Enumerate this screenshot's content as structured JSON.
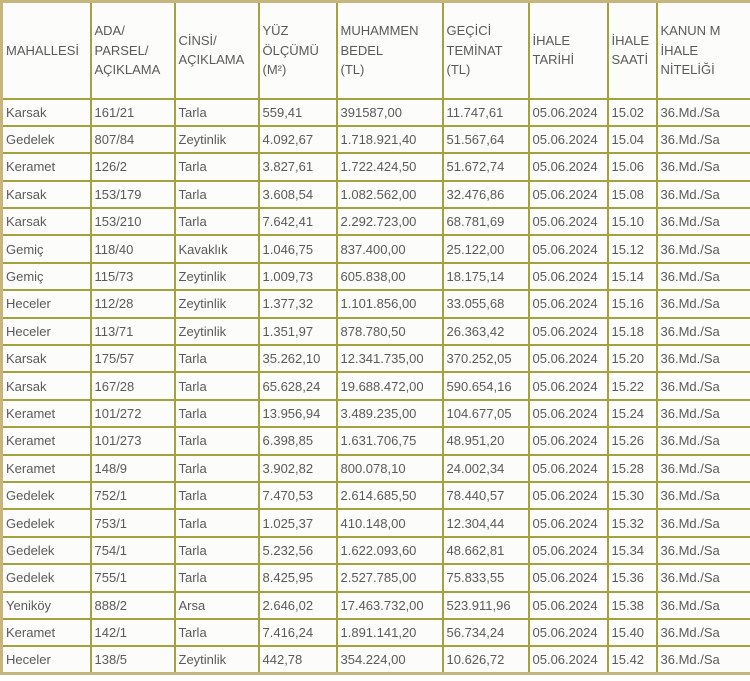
{
  "colors": {
    "grid_border": "#a2a23f",
    "outer_border": "#c6b57c",
    "cell_bg": "#fcfcfa",
    "text": "#5a5a5a",
    "page_bg": "#ffffff"
  },
  "table": {
    "columns": [
      {
        "key": "mahallesi",
        "label": "MAHALLESİ"
      },
      {
        "key": "ada",
        "label": "ADA/\nPARSEL/\nAÇIKLAMA"
      },
      {
        "key": "cinsi",
        "label": "CİNSİ/\nAÇIKLAMA"
      },
      {
        "key": "yuz",
        "label": "YÜZ\nÖLÇÜMÜ\n(M²)"
      },
      {
        "key": "bedel",
        "label": "MUHAMMEN\nBEDEL\n(TL)"
      },
      {
        "key": "teminat",
        "label": "GEÇİCİ\nTEMİNAT\n(TL)"
      },
      {
        "key": "tarih",
        "label": "İHALE\nTARİHİ"
      },
      {
        "key": "saat",
        "label": "İHALE\nSAATİ"
      },
      {
        "key": "kanun",
        "label": "KANUN M\nİHALE\nNİTELİĞİ"
      }
    ],
    "rows": [
      {
        "mahallesi": "Karsak",
        "ada": "161/21",
        "cinsi": "Tarla",
        "yuz": "559,41",
        "bedel": "391587,00",
        "teminat": "11.747,61",
        "tarih": "05.06.2024",
        "saat": "15.02",
        "kanun": "36.Md./Sa"
      },
      {
        "mahallesi": "Gedelek",
        "ada": "807/84",
        "cinsi": "Zeytinlik",
        "yuz": "4.092,67",
        "bedel": "1.718.921,40",
        "teminat": "51.567,64",
        "tarih": "05.06.2024",
        "saat": "15.04",
        "kanun": "36.Md./Sa"
      },
      {
        "mahallesi": "Keramet",
        "ada": "126/2",
        "cinsi": "Tarla",
        "yuz": "3.827,61",
        "bedel": "1.722.424,50",
        "teminat": "51.672,74",
        "tarih": "05.06.2024",
        "saat": "15.06",
        "kanun": "36.Md./Sa"
      },
      {
        "mahallesi": "Karsak",
        "ada": "153/179",
        "cinsi": "Tarla",
        "yuz": "3.608,54",
        "bedel": "1.082.562,00",
        "teminat": "32.476,86",
        "tarih": "05.06.2024",
        "saat": "15.08",
        "kanun": "36.Md./Sa"
      },
      {
        "mahallesi": "Karsak",
        "ada": "153/210",
        "cinsi": "Tarla",
        "yuz": "7.642,41",
        "bedel": "2.292.723,00",
        "teminat": "68.781,69",
        "tarih": "05.06.2024",
        "saat": "15.10",
        "kanun": "36.Md./Sa"
      },
      {
        "mahallesi": "Gemiç",
        "ada": "118/40",
        "cinsi": "Kavaklık",
        "yuz": "1.046,75",
        "bedel": "837.400,00",
        "teminat": "25.122,00",
        "tarih": "05.06.2024",
        "saat": "15.12",
        "kanun": "36.Md./Sa"
      },
      {
        "mahallesi": "Gemiç",
        "ada": "115/73",
        "cinsi": "Zeytinlik",
        "yuz": "1.009,73",
        "bedel": "605.838,00",
        "teminat": "18.175,14",
        "tarih": "05.06.2024",
        "saat": "15.14",
        "kanun": "36.Md./Sa"
      },
      {
        "mahallesi": "Heceler",
        "ada": "112/28",
        "cinsi": "Zeytinlik",
        "yuz": "1.377,32",
        "bedel": "1.101.856,00",
        "teminat": "33.055,68",
        "tarih": "05.06.2024",
        "saat": "15.16",
        "kanun": "36.Md./Sa"
      },
      {
        "mahallesi": "Heceler",
        "ada": "113/71",
        "cinsi": "Zeytinlik",
        "yuz": "1.351,97",
        "bedel": "878.780,50",
        "teminat": "26.363,42",
        "tarih": "05.06.2024",
        "saat": "15.18",
        "kanun": "36.Md./Sa"
      },
      {
        "mahallesi": "Karsak",
        "ada": "175/57",
        "cinsi": "Tarla",
        "yuz": "35.262,10",
        "bedel": "12.341.735,00",
        "teminat": "370.252,05",
        "tarih": "05.06.2024",
        "saat": "15.20",
        "kanun": "36.Md./Sa"
      },
      {
        "mahallesi": "Karsak",
        "ada": "167/28",
        "cinsi": "Tarla",
        "yuz": "65.628,24",
        "bedel": "19.688.472,00",
        "teminat": "590.654,16",
        "tarih": "05.06.2024",
        "saat": "15.22",
        "kanun": "36.Md./Sa"
      },
      {
        "mahallesi": "Keramet",
        "ada": "101/272",
        "cinsi": "Tarla",
        "yuz": "13.956,94",
        "bedel": "3.489.235,00",
        "teminat": "104.677,05",
        "tarih": "05.06.2024",
        "saat": "15.24",
        "kanun": "36.Md./Sa"
      },
      {
        "mahallesi": "Keramet",
        "ada": "101/273",
        "cinsi": "Tarla",
        "yuz": "6.398,85",
        "bedel": "1.631.706,75",
        "teminat": "48.951,20",
        "tarih": "05.06.2024",
        "saat": "15.26",
        "kanun": "36.Md./Sa"
      },
      {
        "mahallesi": "Keramet",
        "ada": "148/9",
        "cinsi": "Tarla",
        "yuz": "3.902,82",
        "bedel": "800.078,10",
        "teminat": "24.002,34",
        "tarih": "05.06.2024",
        "saat": "15.28",
        "kanun": "36.Md./Sa"
      },
      {
        "mahallesi": "Gedelek",
        "ada": "752/1",
        "cinsi": "Tarla",
        "yuz": "7.470,53",
        "bedel": "2.614.685,50",
        "teminat": "78.440,57",
        "tarih": "05.06.2024",
        "saat": "15.30",
        "kanun": "36.Md./Sa"
      },
      {
        "mahallesi": "Gedelek",
        "ada": "753/1",
        "cinsi": "Tarla",
        "yuz": "1.025,37",
        "bedel": "410.148,00",
        "teminat": "12.304,44",
        "tarih": "05.06.2024",
        "saat": "15.32",
        "kanun": "36.Md./Sa"
      },
      {
        "mahallesi": "Gedelek",
        "ada": "754/1",
        "cinsi": "Tarla",
        "yuz": "5.232,56",
        "bedel": "1.622.093,60",
        "teminat": "48.662,81",
        "tarih": "05.06.2024",
        "saat": "15.34",
        "kanun": "36.Md./Sa"
      },
      {
        "mahallesi": "Gedelek",
        "ada": "755/1",
        "cinsi": "Tarla",
        "yuz": "8.425,95",
        "bedel": "2.527.785,00",
        "teminat": "75.833,55",
        "tarih": "05.06.2024",
        "saat": "15.36",
        "kanun": "36.Md./Sa"
      },
      {
        "mahallesi": "Yeniköy",
        "ada": "888/2",
        "cinsi": "Arsa",
        "yuz": "2.646,02",
        "bedel": "17.463.732,00",
        "teminat": "523.911,96",
        "tarih": "05.06.2024",
        "saat": "15.38",
        "kanun": "36.Md./Sa"
      },
      {
        "mahallesi": "Keramet",
        "ada": "142/1",
        "cinsi": "Tarla",
        "yuz": "7.416,24",
        "bedel": "1.891.141,20",
        "teminat": "56.734,24",
        "tarih": "05.06.2024",
        "saat": "15.40",
        "kanun": "36.Md./Sa"
      },
      {
        "mahallesi": "Heceler",
        "ada": "138/5",
        "cinsi": "Zeytinlik",
        "yuz": "442,78",
        "bedel": "354.224,00",
        "teminat": "10.626,72",
        "tarih": "05.06.2024",
        "saat": "15.42",
        "kanun": "36.Md./Sa"
      }
    ]
  }
}
